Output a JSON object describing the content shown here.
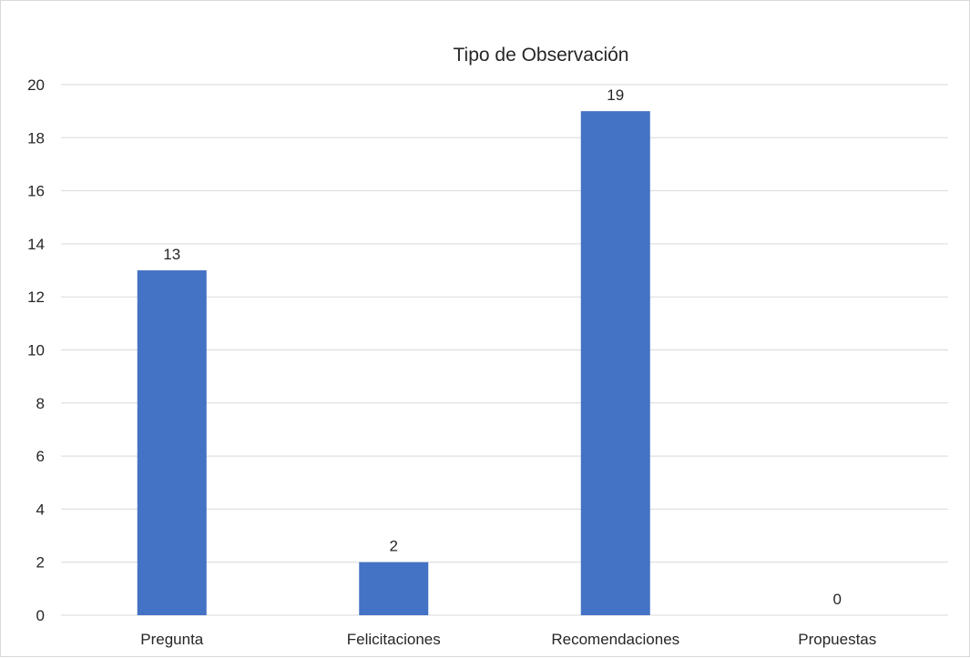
{
  "chart_data": {
    "type": "bar",
    "title": "Tipo de Observación",
    "xlabel": "",
    "ylabel": "",
    "categories": [
      "Pregunta",
      "Felicitaciones",
      "Recomendaciones",
      "Propuestas"
    ],
    "values": [
      13,
      2,
      19,
      0
    ],
    "data_labels": [
      "13",
      "2",
      "19",
      "0"
    ],
    "ylim": [
      0,
      20
    ],
    "yticks": [
      0,
      2,
      4,
      6,
      8,
      10,
      12,
      14,
      16,
      18,
      20
    ],
    "ytick_labels": [
      "0",
      "2",
      "4",
      "6",
      "8",
      "10",
      "12",
      "14",
      "16",
      "18",
      "20"
    ],
    "grid": true,
    "legend": "none",
    "bar_color": "#4472c4"
  }
}
